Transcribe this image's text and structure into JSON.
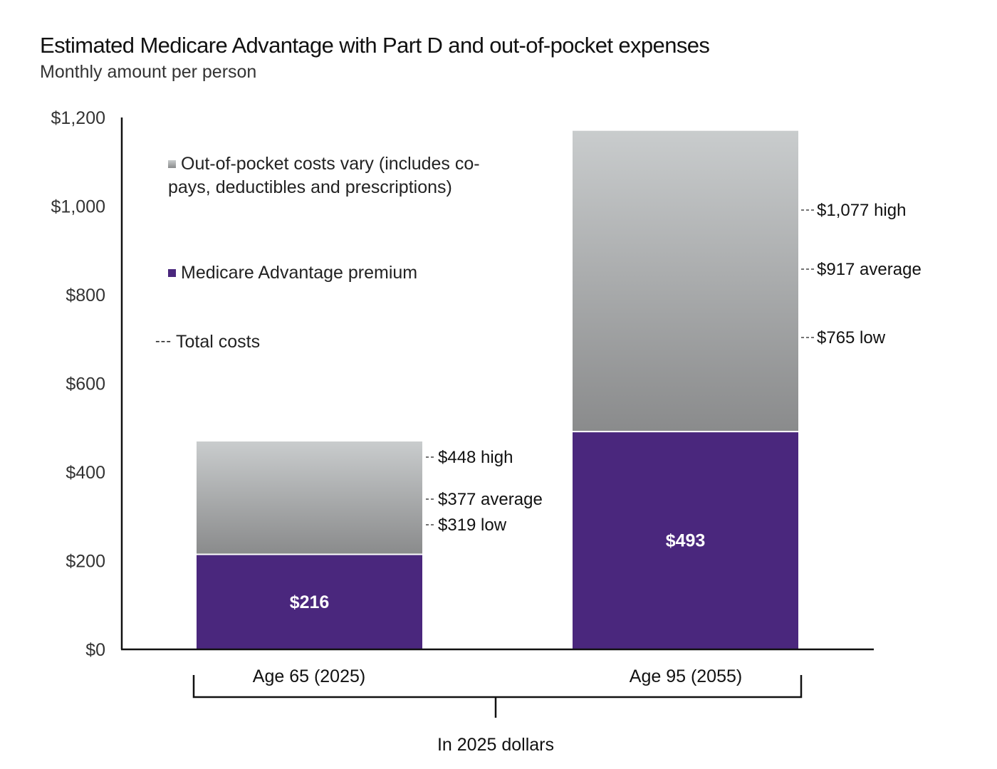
{
  "chart_data": {
    "type": "bar",
    "stacked": true,
    "title": "Estimated Medicare Advantage with Part D and out-of-pocket expenses",
    "subtitle": "Monthly amount per person",
    "xlabel": "In 2025 dollars",
    "ylabel": "",
    "ylim": [
      0,
      1200
    ],
    "yticks": [
      0,
      200,
      400,
      600,
      800,
      1000,
      1200
    ],
    "ytick_labels": [
      "$0",
      "$200",
      "$400",
      "$600",
      "$800",
      "$1,000",
      "$1,200"
    ],
    "categories": [
      "Age 65 (2025)",
      "Age 95 (2055)"
    ],
    "series": [
      {
        "name": "Medicare Advantage premium",
        "values": [
          216,
          493
        ],
        "value_labels": [
          "$216",
          "$493"
        ],
        "color": "#4a277d"
      },
      {
        "name": "Out-of-pocket costs vary (includes co-pays, deductibles and prescriptions)",
        "bar_top_values": [
          469,
          1170
        ],
        "color_top": "#c9cccd",
        "color_bottom": "#8a8b8c"
      }
    ],
    "total_costs": [
      {
        "high": 448,
        "average": 377,
        "low": 319,
        "labels": [
          "$448 high",
          "$377 average",
          "$319 low"
        ]
      },
      {
        "high": 1077,
        "average": 917,
        "low": 765,
        "labels": [
          "$1,077 high",
          "$917 average",
          "$765 low"
        ]
      }
    ],
    "legend": {
      "items": [
        "Out-of-pocket costs vary (includes co-pays, deductibles and prescriptions)",
        "Medicare Advantage premium",
        "Total costs"
      ],
      "placement": "top-left"
    },
    "grid": false
  }
}
